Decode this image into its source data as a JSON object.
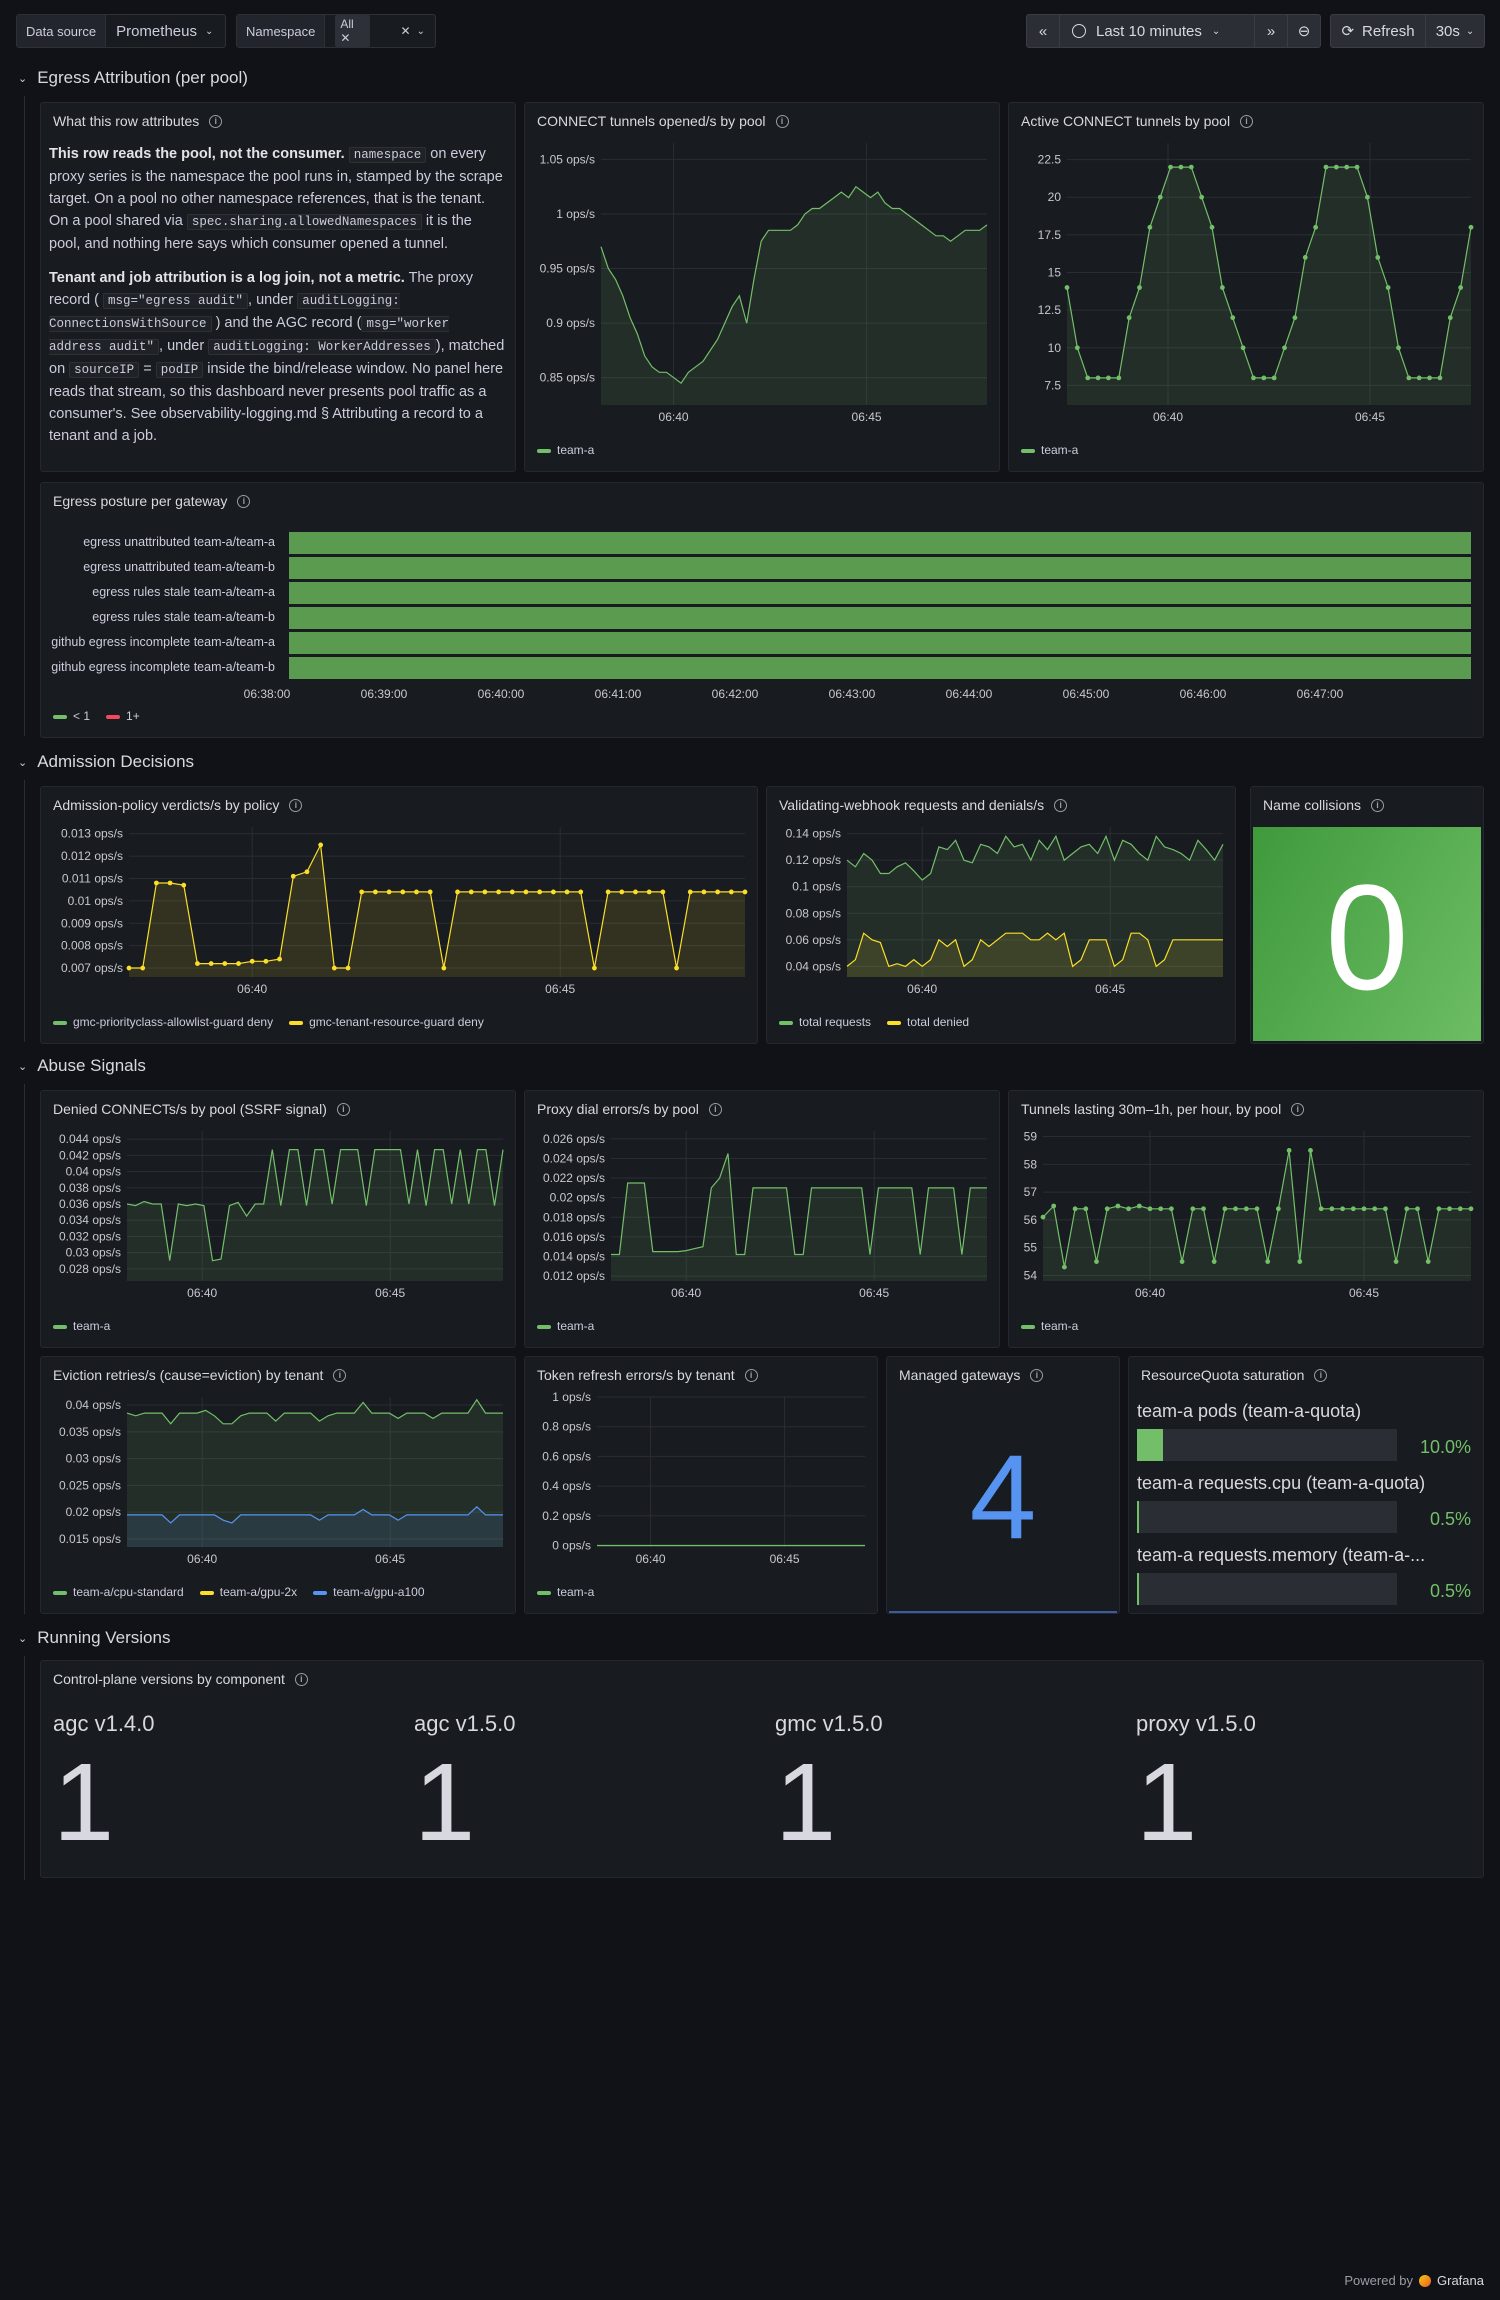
{
  "toolbar": {
    "datasource_label": "Data source",
    "datasource_value": "Prometheus",
    "namespace_label": "Namespace",
    "namespace_value": "All",
    "time_range": "Last 10 minutes",
    "refresh_label": "Refresh",
    "refresh_interval": "30s"
  },
  "rows": {
    "egress": "Egress Attribution (per pool)",
    "admission": "Admission Decisions",
    "abuse": "Abuse Signals",
    "versions": "Running Versions"
  },
  "text_panel": {
    "title": "What this row attributes",
    "p1_bold": "This row reads the pool, not the consumer.",
    "p1_code1": "namespace",
    "p1_a": "on every proxy series is the namespace the pool runs in, stamped by the scrape target. On a pool no other namespace references, that is the tenant. On a pool shared via",
    "p1_code2": "spec.sharing.allowedNamespaces",
    "p1_b": "it is the pool, and nothing here says which consumer opened a tunnel.",
    "p2_bold": "Tenant and job attribution is a log join, not a metric.",
    "p2_a": "The proxy record (",
    "p2_code1": "msg=\"egress audit\"",
    "p2_b": ", under",
    "p2_code2": "auditLogging: ConnectionsWithSource",
    "p2_c": ") and the AGC record (",
    "p2_code3": "msg=\"worker address audit\"",
    "p2_d": ", under",
    "p2_code4": "auditLogging: WorkerAddresses",
    "p2_e": "), matched on",
    "p2_code5": "sourceIP",
    "p2_f": "=",
    "p2_code6": "podIP",
    "p2_g": "inside the bind/release window. No panel here reads that stream, so this dashboard never presents pool traffic as a consumer's. See observability-logging.md § Attributing a record to a tenant and a job."
  },
  "charts": {
    "connect_opened": {
      "title": "CONNECT tunnels opened/s by pool",
      "type": "line",
      "y_ticks": [
        "1.05 ops/s",
        "1 ops/s",
        "0.95 ops/s",
        "0.9 ops/s",
        "0.85 ops/s"
      ],
      "y_values": [
        1.05,
        1.0,
        0.95,
        0.9,
        0.85
      ],
      "ylim": [
        0.825,
        1.065
      ],
      "x_ticks": [
        "06:40",
        "06:45"
      ],
      "x_tick_pos": [
        0.188,
        0.688
      ],
      "series": [
        {
          "name": "team-a",
          "color": "#73bf69",
          "values": [
            0.97,
            0.95,
            0.94,
            0.925,
            0.905,
            0.89,
            0.87,
            0.86,
            0.855,
            0.855,
            0.85,
            0.845,
            0.855,
            0.86,
            0.865,
            0.875,
            0.885,
            0.9,
            0.915,
            0.925,
            0.9,
            0.94,
            0.975,
            0.985,
            0.985,
            0.985,
            0.985,
            0.99,
            1.0,
            1.005,
            1.005,
            1.01,
            1.015,
            1.02,
            1.015,
            1.025,
            1.02,
            1.015,
            1.02,
            1.01,
            1.005,
            1.005,
            1.0,
            0.995,
            0.99,
            0.985,
            0.98,
            0.98,
            0.975,
            0.98,
            0.985,
            0.985,
            0.985,
            0.99
          ]
        }
      ]
    },
    "active_connect": {
      "title": "Active CONNECT tunnels by pool",
      "type": "line",
      "points": true,
      "y_ticks": [
        "22.5",
        "20",
        "17.5",
        "15",
        "12.5",
        "10",
        "7.5"
      ],
      "y_values": [
        22.5,
        20,
        17.5,
        15,
        12.5,
        10,
        7.5
      ],
      "ylim": [
        6.2,
        23.6
      ],
      "x_ticks": [
        "06:40",
        "06:45"
      ],
      "x_tick_pos": [
        0.25,
        0.75
      ],
      "series": [
        {
          "name": "team-a",
          "color": "#73bf69",
          "values": [
            14,
            10,
            8,
            8,
            8,
            8,
            12,
            14,
            18,
            20,
            22,
            22,
            22,
            20,
            18,
            14,
            12,
            10,
            8,
            8,
            8,
            10,
            12,
            16,
            18,
            22,
            22,
            22,
            22,
            20,
            16,
            14,
            10,
            8,
            8,
            8,
            8,
            12,
            14,
            18
          ]
        }
      ]
    },
    "admission_verdicts": {
      "title": "Admission-policy verdicts/s by policy",
      "type": "line",
      "points": true,
      "y_ticks": [
        "0.013 ops/s",
        "0.012 ops/s",
        "0.011 ops/s",
        "0.01 ops/s",
        "0.009 ops/s",
        "0.008 ops/s",
        "0.007 ops/s"
      ],
      "y_values": [
        0.013,
        0.012,
        0.011,
        0.01,
        0.009,
        0.008,
        0.007
      ],
      "ylim": [
        0.0066,
        0.0133
      ],
      "x_ticks": [
        "06:40",
        "06:45"
      ],
      "x_tick_pos": [
        0.2,
        0.7
      ],
      "series": [
        {
          "name": "gmc-priorityclass-allowlist-guard deny",
          "color": "#73bf69",
          "values": []
        },
        {
          "name": "gmc-tenant-resource-guard deny",
          "color": "#fade2a",
          "values": [
            0.007,
            0.007,
            0.0108,
            0.0108,
            0.0107,
            0.0072,
            0.0072,
            0.0072,
            0.0072,
            0.0073,
            0.0073,
            0.0074,
            0.0111,
            0.0113,
            0.0125,
            0.007,
            0.007,
            0.0104,
            0.0104,
            0.0104,
            0.0104,
            0.0104,
            0.0104,
            0.007,
            0.0104,
            0.0104,
            0.0104,
            0.0104,
            0.0104,
            0.0104,
            0.0104,
            0.0104,
            0.0104,
            0.0104,
            0.007,
            0.0104,
            0.0104,
            0.0104,
            0.0104,
            0.0104,
            0.007,
            0.0104,
            0.0104,
            0.0104,
            0.0104,
            0.0104
          ]
        }
      ]
    },
    "webhook": {
      "title": "Validating-webhook requests and denials/s",
      "type": "line",
      "y_ticks": [
        "0.14 ops/s",
        "0.12 ops/s",
        "0.1 ops/s",
        "0.08 ops/s",
        "0.06 ops/s",
        "0.04 ops/s"
      ],
      "y_values": [
        0.14,
        0.12,
        0.1,
        0.08,
        0.06,
        0.04
      ],
      "ylim": [
        0.032,
        0.145
      ],
      "x_ticks": [
        "06:40",
        "06:45"
      ],
      "x_tick_pos": [
        0.2,
        0.7
      ],
      "series": [
        {
          "name": "total requests",
          "color": "#73bf69",
          "values": [
            0.12,
            0.115,
            0.125,
            0.12,
            0.11,
            0.11,
            0.115,
            0.118,
            0.112,
            0.105,
            0.11,
            0.13,
            0.128,
            0.135,
            0.12,
            0.118,
            0.132,
            0.13,
            0.125,
            0.138,
            0.13,
            0.132,
            0.12,
            0.135,
            0.128,
            0.138,
            0.12,
            0.125,
            0.13,
            0.132,
            0.125,
            0.138,
            0.12,
            0.135,
            0.132,
            0.125,
            0.12,
            0.138,
            0.13,
            0.128,
            0.125,
            0.12,
            0.135,
            0.128,
            0.12,
            0.132
          ]
        },
        {
          "name": "total denied",
          "color": "#fade2a",
          "values": [
            0.04,
            0.045,
            0.065,
            0.06,
            0.058,
            0.04,
            0.042,
            0.04,
            0.045,
            0.04,
            0.045,
            0.06,
            0.055,
            0.06,
            0.04,
            0.045,
            0.06,
            0.055,
            0.06,
            0.065,
            0.065,
            0.065,
            0.06,
            0.06,
            0.065,
            0.06,
            0.065,
            0.04,
            0.045,
            0.06,
            0.06,
            0.06,
            0.04,
            0.045,
            0.065,
            0.065,
            0.06,
            0.04,
            0.045,
            0.06,
            0.06,
            0.06,
            0.06,
            0.06,
            0.06,
            0.06
          ]
        }
      ]
    },
    "denied_connects": {
      "title": "Denied CONNECTs/s by pool (SSRF signal)",
      "type": "line",
      "y_ticks": [
        "0.044 ops/s",
        "0.042 ops/s",
        "0.04 ops/s",
        "0.038 ops/s",
        "0.036 ops/s",
        "0.034 ops/s",
        "0.032 ops/s",
        "0.03 ops/s",
        "0.028 ops/s"
      ],
      "y_values": [
        0.044,
        0.042,
        0.04,
        0.038,
        0.036,
        0.034,
        0.032,
        0.03,
        0.028
      ],
      "ylim": [
        0.0265,
        0.045
      ],
      "x_ticks": [
        "06:40",
        "06:45"
      ],
      "x_tick_pos": [
        0.2,
        0.7
      ],
      "series": [
        {
          "name": "team-a",
          "color": "#73bf69",
          "values": [
            0.036,
            0.0358,
            0.0363,
            0.036,
            0.036,
            0.029,
            0.036,
            0.0358,
            0.036,
            0.0358,
            0.029,
            0.0292,
            0.0358,
            0.0362,
            0.0345,
            0.036,
            0.036,
            0.0427,
            0.0358,
            0.0427,
            0.0427,
            0.0358,
            0.0427,
            0.0427,
            0.036,
            0.0427,
            0.0427,
            0.0427,
            0.0358,
            0.0427,
            0.0427,
            0.0427,
            0.0427,
            0.036,
            0.0427,
            0.0358,
            0.0427,
            0.0427,
            0.036,
            0.0427,
            0.036,
            0.0427,
            0.0427,
            0.0358,
            0.0427
          ]
        }
      ]
    },
    "proxy_dial": {
      "title": "Proxy dial errors/s by pool",
      "type": "line",
      "y_ticks": [
        "0.026 ops/s",
        "0.024 ops/s",
        "0.022 ops/s",
        "0.02 ops/s",
        "0.018 ops/s",
        "0.016 ops/s",
        "0.014 ops/s",
        "0.012 ops/s"
      ],
      "y_values": [
        0.026,
        0.024,
        0.022,
        0.02,
        0.018,
        0.016,
        0.014,
        0.012
      ],
      "ylim": [
        0.0115,
        0.0268
      ],
      "x_ticks": [
        "06:40",
        "06:45"
      ],
      "x_tick_pos": [
        0.2,
        0.7
      ],
      "series": [
        {
          "name": "team-a",
          "color": "#73bf69",
          "values": [
            0.0142,
            0.0142,
            0.0215,
            0.0215,
            0.0215,
            0.0145,
            0.0145,
            0.0145,
            0.0145,
            0.0146,
            0.0148,
            0.015,
            0.021,
            0.022,
            0.0245,
            0.0142,
            0.0142,
            0.021,
            0.021,
            0.021,
            0.021,
            0.021,
            0.0142,
            0.0142,
            0.021,
            0.021,
            0.021,
            0.021,
            0.021,
            0.021,
            0.021,
            0.0142,
            0.021,
            0.021,
            0.021,
            0.021,
            0.021,
            0.0142,
            0.021,
            0.021,
            0.021,
            0.021,
            0.0142,
            0.021,
            0.021,
            0.021
          ]
        }
      ]
    },
    "tunnels_30m": {
      "title": "Tunnels lasting 30m–1h, per hour, by pool",
      "type": "line",
      "points": true,
      "y_ticks": [
        "59",
        "58",
        "57",
        "56",
        "55",
        "54"
      ],
      "y_values": [
        59,
        58,
        57,
        56,
        55,
        54
      ],
      "ylim": [
        53.8,
        59.2
      ],
      "x_ticks": [
        "06:40",
        "06:45"
      ],
      "x_tick_pos": [
        0.25,
        0.75
      ],
      "series": [
        {
          "name": "team-a",
          "color": "#73bf69",
          "values": [
            56.1,
            56.5,
            54.3,
            56.4,
            56.4,
            54.5,
            56.4,
            56.5,
            56.4,
            56.5,
            56.4,
            56.4,
            56.4,
            54.5,
            56.4,
            56.4,
            54.5,
            56.4,
            56.4,
            56.4,
            56.4,
            54.5,
            56.4,
            58.5,
            54.5,
            58.5,
            56.4,
            56.4,
            56.4,
            56.4,
            56.4,
            56.4,
            56.4,
            54.5,
            56.4,
            56.4,
            54.5,
            56.4,
            56.4,
            56.4,
            56.4
          ]
        }
      ]
    },
    "eviction": {
      "title": "Eviction retries/s (cause=eviction) by tenant",
      "type": "line",
      "y_ticks": [
        "0.04 ops/s",
        "0.035 ops/s",
        "0.03 ops/s",
        "0.025 ops/s",
        "0.02 ops/s",
        "0.015 ops/s"
      ],
      "y_values": [
        0.04,
        0.035,
        0.03,
        0.025,
        0.02,
        0.015
      ],
      "ylim": [
        0.0135,
        0.0415
      ],
      "x_ticks": [
        "06:40",
        "06:45"
      ],
      "x_tick_pos": [
        0.2,
        0.7
      ],
      "series": [
        {
          "name": "team-a/cpu-standard",
          "color": "#73bf69",
          "values": [
            0.0385,
            0.038,
            0.0385,
            0.0385,
            0.0385,
            0.0365,
            0.0385,
            0.0385,
            0.0385,
            0.039,
            0.038,
            0.0365,
            0.0365,
            0.038,
            0.0385,
            0.0385,
            0.0385,
            0.037,
            0.0385,
            0.0385,
            0.0385,
            0.0385,
            0.037,
            0.038,
            0.0385,
            0.0385,
            0.0385,
            0.0405,
            0.0385,
            0.0385,
            0.0385,
            0.0375,
            0.0385,
            0.0385,
            0.0385,
            0.0375,
            0.0385,
            0.0385,
            0.0385,
            0.0385,
            0.041,
            0.0385,
            0.0385,
            0.0385
          ]
        },
        {
          "name": "team-a/gpu-2x",
          "color": "#fade2a",
          "values": []
        },
        {
          "name": "team-a/gpu-a100",
          "color": "#5794f2",
          "values": [
            0.0195,
            0.0195,
            0.0195,
            0.0195,
            0.0195,
            0.018,
            0.0195,
            0.0195,
            0.0195,
            0.0195,
            0.0195,
            0.0185,
            0.018,
            0.0195,
            0.0195,
            0.0195,
            0.0195,
            0.0195,
            0.0195,
            0.0195,
            0.0195,
            0.0195,
            0.0185,
            0.0195,
            0.0195,
            0.0195,
            0.0195,
            0.0205,
            0.0195,
            0.0195,
            0.0195,
            0.0185,
            0.0195,
            0.0195,
            0.0195,
            0.0195,
            0.0195,
            0.0195,
            0.0195,
            0.0195,
            0.021,
            0.0195,
            0.0195,
            0.0195
          ]
        }
      ]
    },
    "token_refresh": {
      "title": "Token refresh errors/s by tenant",
      "type": "line",
      "y_ticks": [
        "1 ops/s",
        "0.8 ops/s",
        "0.6 ops/s",
        "0.4 ops/s",
        "0.2 ops/s",
        "0 ops/s"
      ],
      "y_values": [
        1,
        0.8,
        0.6,
        0.4,
        0.2,
        0
      ],
      "ylim": [
        -0.01,
        1.0
      ],
      "x_ticks": [
        "06:40",
        "06:45"
      ],
      "x_tick_pos": [
        0.2,
        0.7
      ],
      "series": [
        {
          "name": "team-a",
          "color": "#73bf69",
          "values": [
            0,
            0,
            0,
            0,
            0,
            0,
            0,
            0,
            0,
            0,
            0,
            0
          ]
        }
      ]
    }
  },
  "egress_posture": {
    "title": "Egress posture per gateway",
    "rows": [
      "egress unattributed team-a/team-a",
      "egress unattributed team-a/team-b",
      "egress rules stale team-a/team-a",
      "egress rules stale team-a/team-b",
      "github egress incomplete team-a/team-a",
      "github egress incomplete team-a/team-b"
    ],
    "x_ticks": [
      "06:38:00",
      "06:39:00",
      "06:40:00",
      "06:41:00",
      "06:42:00",
      "06:43:00",
      "06:44:00",
      "06:45:00",
      "06:46:00",
      "06:47:00"
    ],
    "legend": [
      {
        "name": "< 1",
        "color": "#73bf69"
      },
      {
        "name": "1+",
        "color": "#f2495c"
      }
    ],
    "bar_color": "#5a9b4f"
  },
  "stats": {
    "name_collisions": {
      "title": "Name collisions",
      "value": "0"
    },
    "managed_gateways": {
      "title": "Managed gateways",
      "value": "4"
    }
  },
  "quota": {
    "title": "ResourceQuota saturation",
    "items": [
      {
        "label": "team-a pods (team-a-quota)",
        "value": "10.0%",
        "fraction": 0.1
      },
      {
        "label": "team-a requests.cpu (team-a-quota)",
        "value": "0.5%",
        "fraction": 0.005
      },
      {
        "label": "team-a requests.memory (team-a-...",
        "value": "0.5%",
        "fraction": 0.005
      }
    ]
  },
  "versions": {
    "title": "Control-plane versions by component",
    "items": [
      {
        "label": "agc v1.4.0",
        "value": "1"
      },
      {
        "label": "agc v1.5.0",
        "value": "1"
      },
      {
        "label": "gmc v1.5.0",
        "value": "1"
      },
      {
        "label": "proxy v1.5.0",
        "value": "1"
      }
    ]
  },
  "footer": {
    "powered_by": "Powered by",
    "brand": "Grafana"
  }
}
